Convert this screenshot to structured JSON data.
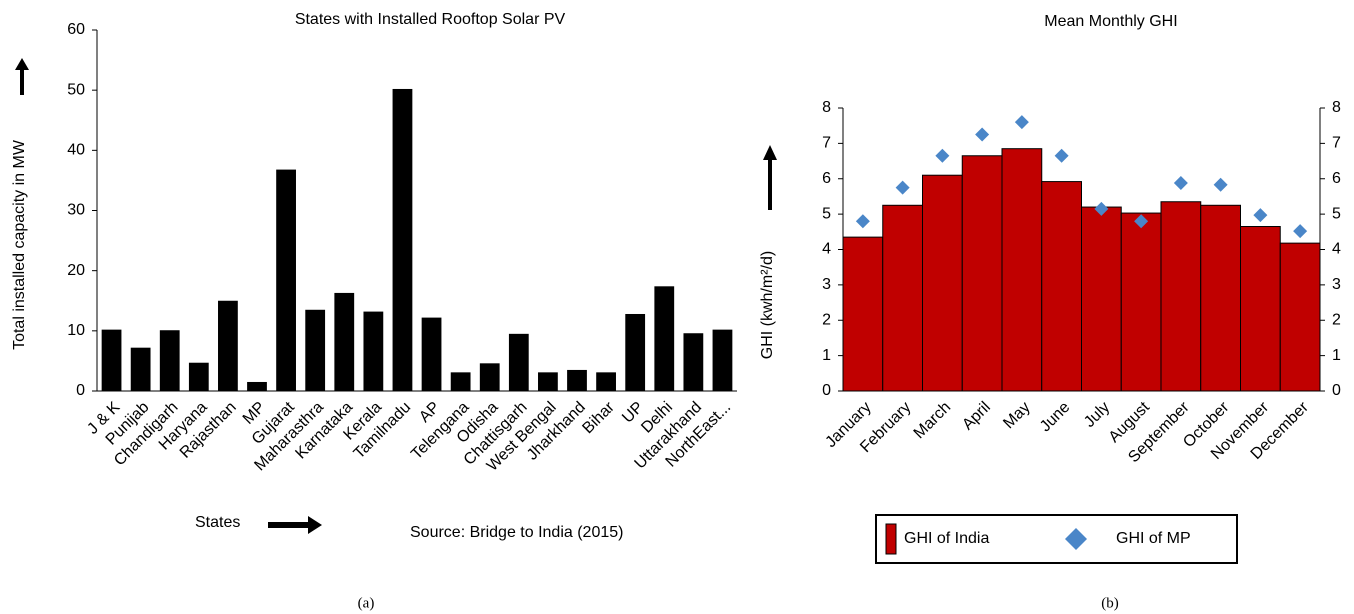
{
  "chart_data": [
    {
      "type": "bar",
      "title": "States with Installed Rooftop Solar PV",
      "y_label": "Total installed capacity in MW",
      "x_label": "States",
      "annotation": "Source: Bridge to India (2015)",
      "caption": "(a)",
      "categories": [
        "J & K",
        "Punijab",
        "Chandigarh",
        "Haryana",
        "Rajasthan",
        "MP",
        "Gujarat",
        "Maharasthra",
        "Karnataka",
        "Kerala",
        "Tamilnadu",
        "AP",
        "Telengana",
        "Odisha",
        "Chattisgarh",
        "West Bengal",
        "Jharkhand",
        "Bihar",
        "UP",
        "Delhi",
        "Uttarakhand",
        "NorthEast..."
      ],
      "series": [
        {
          "name": null,
          "type": "bar",
          "color": "#000000",
          "values": [
            10.2,
            7.2,
            10.1,
            4.7,
            15,
            1.5,
            36.8,
            13.5,
            16.3,
            13.2,
            50.2,
            12.2,
            3.1,
            4.6,
            9.5,
            3.1,
            3.5,
            3.1,
            12.8,
            17.4,
            9.6,
            10.2
          ]
        }
      ],
      "ylim": [
        0,
        60
      ],
      "yticks": [
        0,
        10,
        20,
        30,
        40,
        50,
        60
      ],
      "legend": false
    },
    {
      "type": "bar",
      "title": "Mean Monthly GHI",
      "y_label": "GHI (kwh/m²/d)",
      "caption": "(b)",
      "categories": [
        "January",
        "February",
        "March",
        "April",
        "May",
        "June",
        "July",
        "August",
        "September",
        "October",
        "November",
        "December"
      ],
      "series": [
        {
          "name": "GHI of India",
          "type": "bar",
          "color": "#c00000",
          "values": [
            4.35,
            5.25,
            6.1,
            6.65,
            6.85,
            5.92,
            5.2,
            5.03,
            5.35,
            5.25,
            4.65,
            4.18
          ]
        },
        {
          "name": "GHI of MP",
          "type": "scatter",
          "color": "#4a86c8",
          "values": [
            4.8,
            5.75,
            6.65,
            7.25,
            7.6,
            6.65,
            5.15,
            4.8,
            5.88,
            5.83,
            4.97,
            4.52
          ]
        }
      ],
      "ylim": [
        0,
        8
      ],
      "yticks": [
        0,
        1,
        2,
        3,
        4,
        5,
        6,
        7,
        8
      ],
      "y2lim": [
        0,
        8
      ],
      "y2ticks": [
        0,
        1,
        2,
        3,
        4,
        5,
        6,
        7,
        8
      ],
      "legend": "bottom"
    }
  ]
}
